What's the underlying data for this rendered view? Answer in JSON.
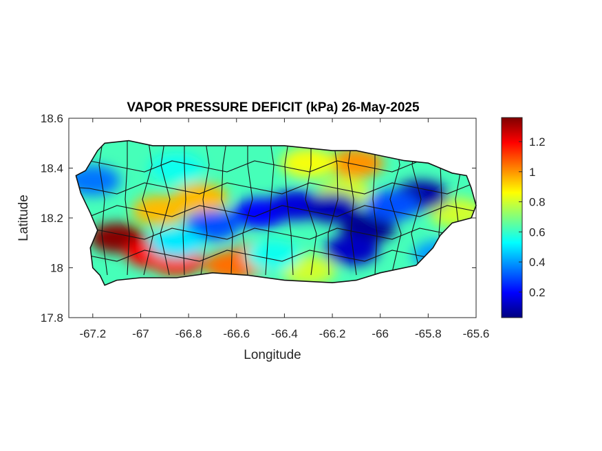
{
  "title": "VAPOR PRESSURE DEFICIT (kPa) 26-May-2025",
  "x_axis": {
    "label": "Longitude",
    "range": [
      -67.3,
      -65.6
    ],
    "ticks": [
      -67.2,
      -67,
      -66.8,
      -66.6,
      -66.4,
      -66.2,
      -66,
      -65.8,
      -65.6
    ],
    "tick_labels": [
      "-67.2",
      "-67",
      "-66.8",
      "-66.6",
      "-66.4",
      "-66.2",
      "-66",
      "-65.8",
      "-65.6"
    ]
  },
  "y_axis": {
    "label": "Latitude",
    "range": [
      17.8,
      18.6
    ],
    "ticks": [
      17.8,
      18,
      18.2,
      18.4,
      18.6
    ],
    "tick_labels": [
      "17.8",
      "18",
      "18.2",
      "18.4",
      "18.6"
    ]
  },
  "colorbar": {
    "colormap": "jet",
    "range": [
      0.03,
      1.36
    ],
    "ticks": [
      0.2,
      0.4,
      0.6,
      0.8,
      1,
      1.2
    ],
    "tick_labels": [
      "0.2",
      "0.4",
      "0.6",
      "0.8",
      "1",
      "1.2"
    ],
    "stops": [
      "#00007f",
      "#0000ff",
      "#007fff",
      "#00ffff",
      "#7fff7f",
      "#ffff00",
      "#ff7f00",
      "#ff0000",
      "#7f0000"
    ]
  },
  "map_outline_lonlat": [
    [
      -67.27,
      18.37
    ],
    [
      -67.23,
      18.39
    ],
    [
      -67.18,
      18.47
    ],
    [
      -67.15,
      18.5
    ],
    [
      -67.05,
      18.51
    ],
    [
      -66.95,
      18.49
    ],
    [
      -66.8,
      18.49
    ],
    [
      -66.6,
      18.49
    ],
    [
      -66.4,
      18.49
    ],
    [
      -66.2,
      18.47
    ],
    [
      -66.1,
      18.47
    ],
    [
      -66.0,
      18.45
    ],
    [
      -65.9,
      18.43
    ],
    [
      -65.8,
      18.42
    ],
    [
      -65.7,
      18.38
    ],
    [
      -65.64,
      18.37
    ],
    [
      -65.62,
      18.32
    ],
    [
      -65.6,
      18.25
    ],
    [
      -65.62,
      18.2
    ],
    [
      -65.7,
      18.18
    ],
    [
      -65.75,
      18.13
    ],
    [
      -65.78,
      18.08
    ],
    [
      -65.85,
      18.01
    ],
    [
      -66.0,
      17.98
    ],
    [
      -66.1,
      17.95
    ],
    [
      -66.2,
      17.94
    ],
    [
      -66.4,
      17.95
    ],
    [
      -66.55,
      17.97
    ],
    [
      -66.7,
      17.98
    ],
    [
      -66.85,
      17.96
    ],
    [
      -67.0,
      17.96
    ],
    [
      -67.1,
      17.95
    ],
    [
      -67.15,
      17.93
    ],
    [
      -67.17,
      17.97
    ],
    [
      -67.2,
      18.0
    ],
    [
      -67.21,
      18.08
    ],
    [
      -67.18,
      18.15
    ],
    [
      -67.21,
      18.22
    ],
    [
      -67.25,
      18.3
    ],
    [
      -67.27,
      18.37
    ]
  ],
  "vpd_field": {
    "units": "kPa",
    "background": 0.62,
    "anomalies": [
      {
        "lon": -67.1,
        "lat": 18.12,
        "value": 1.35
      },
      {
        "lon": -66.95,
        "lat": 18.06,
        "value": 1.2
      },
      {
        "lon": -66.85,
        "lat": 18.03,
        "value": 1.15
      },
      {
        "lon": -66.62,
        "lat": 18.01,
        "value": 1.05
      },
      {
        "lon": -66.52,
        "lat": 18.04,
        "value": 1.05
      },
      {
        "lon": -66.1,
        "lat": 18.42,
        "value": 1.0
      },
      {
        "lon": -66.3,
        "lat": 18.42,
        "value": 0.85
      },
      {
        "lon": -66.92,
        "lat": 18.23,
        "value": 0.95
      },
      {
        "lon": -66.75,
        "lat": 18.28,
        "value": 0.95
      },
      {
        "lon": -66.3,
        "lat": 17.99,
        "value": 0.8
      },
      {
        "lon": -65.68,
        "lat": 18.22,
        "value": 0.8
      },
      {
        "lon": -66.15,
        "lat": 18.3,
        "value": 0.8
      },
      {
        "lon": -66.85,
        "lat": 18.4,
        "value": 0.55
      },
      {
        "lon": -66.5,
        "lat": 18.22,
        "value": 0.2
      },
      {
        "lon": -66.35,
        "lat": 18.25,
        "value": 0.15
      },
      {
        "lon": -66.2,
        "lat": 18.24,
        "value": 0.1
      },
      {
        "lon": -66.05,
        "lat": 18.16,
        "value": 0.05
      },
      {
        "lon": -66.12,
        "lat": 18.07,
        "value": 0.12
      },
      {
        "lon": -65.83,
        "lat": 18.29,
        "value": 0.08
      },
      {
        "lon": -65.95,
        "lat": 18.25,
        "value": 0.3
      },
      {
        "lon": -66.7,
        "lat": 18.17,
        "value": 0.3
      },
      {
        "lon": -67.2,
        "lat": 18.35,
        "value": 0.35
      },
      {
        "lon": -66.85,
        "lat": 18.1,
        "value": 0.5
      },
      {
        "lon": -66.45,
        "lat": 18.05,
        "value": 0.55
      },
      {
        "lon": -65.75,
        "lat": 18.05,
        "value": 0.4
      }
    ]
  }
}
